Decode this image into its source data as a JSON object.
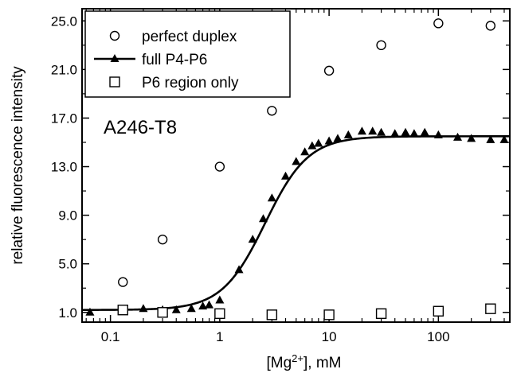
{
  "chart_data": {
    "type": "scatter",
    "title": "",
    "annotation": "A246-T8",
    "xlabel_parts": {
      "pre": "[Mg",
      "sup": "2+",
      "post": "], mM"
    },
    "ylabel": "relative fluorescence intensity",
    "x_scale": "log",
    "xlim": [
      0.055,
      450
    ],
    "ylim": [
      0.2,
      26.0
    ],
    "y_ticks": [
      1.0,
      5.0,
      9.0,
      13.0,
      17.0,
      21.0,
      25.0
    ],
    "y_tick_labels": [
      "1.0",
      "5.0",
      "9.0",
      "13.0",
      "17.0",
      "21.0",
      "25.0"
    ],
    "x_ticks": [
      0.1,
      1,
      10,
      100
    ],
    "x_tick_labels": [
      "0.1",
      "1",
      "10",
      "100"
    ],
    "grid": false,
    "legend_position": "top-left",
    "series": [
      {
        "name": "perfect duplex",
        "marker": "open-circle",
        "x": [
          0.13,
          0.3,
          1,
          3,
          10,
          30,
          100,
          300
        ],
        "y": [
          3.5,
          7.0,
          13.0,
          17.6,
          20.9,
          23.0,
          24.8,
          24.6
        ]
      },
      {
        "name": "full P4-P6",
        "marker": "filled-triangle",
        "line": "sigmoid-fit",
        "x": [
          0.065,
          0.13,
          0.2,
          0.3,
          0.4,
          0.55,
          0.7,
          0.8,
          1,
          1.5,
          2,
          2.5,
          3,
          4,
          5,
          6,
          7,
          8,
          10,
          12,
          15,
          20,
          25,
          30,
          40,
          50,
          60,
          75,
          100,
          150,
          200,
          300,
          400
        ],
        "y": [
          1.0,
          1.2,
          1.3,
          1.2,
          1.2,
          1.3,
          1.5,
          1.6,
          2.0,
          4.5,
          7.0,
          8.7,
          10.4,
          12.2,
          13.4,
          14.2,
          14.7,
          14.9,
          15.1,
          15.3,
          15.6,
          15.9,
          15.9,
          15.8,
          15.7,
          15.8,
          15.7,
          15.8,
          15.6,
          15.4,
          15.3,
          15.2,
          15.2
        ],
        "fit": {
          "baseline": 1.2,
          "plateau": 15.5,
          "midpoint_mM": 2.6,
          "hill": 2.2
        }
      },
      {
        "name": "P6 region only",
        "marker": "open-square",
        "x": [
          0.13,
          0.3,
          1,
          3,
          10,
          30,
          100,
          300
        ],
        "y": [
          1.2,
          1.0,
          0.9,
          0.8,
          0.8,
          0.9,
          1.1,
          1.3
        ]
      }
    ]
  }
}
